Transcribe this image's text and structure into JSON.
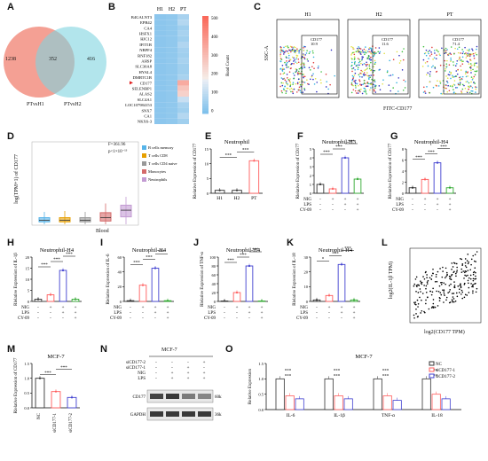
{
  "panel_letters": [
    "A",
    "B",
    "C",
    "D",
    "E",
    "F",
    "G",
    "H",
    "I",
    "J",
    "K",
    "L",
    "M",
    "N",
    "O"
  ],
  "venn": {
    "left_only": "1238",
    "overlap": "352",
    "right_only": "416",
    "left_label": "PTvsH1",
    "right_label": "PTvsH2",
    "left_color": "#f08070",
    "right_color": "#7fd3e0"
  },
  "heatmap": {
    "columns": [
      "H1",
      "H2",
      "PT"
    ],
    "genes": [
      "B4GALNT3",
      "EPB42",
      "CA4",
      "HSFX1",
      "HJC12",
      "IFIT1B",
      "NBPF4",
      "RNF182",
      "AHSP",
      "SLC30A8",
      "HYAL4",
      "DMRTC1B",
      "CD177",
      "SELENBP1",
      "ALAS2",
      "SLC4A1",
      "LOC107984153",
      "SNX7",
      "CA1",
      "NKX6-3"
    ],
    "pt_levels": [
      0.12,
      0.15,
      0.1,
      0.12,
      0.1,
      0.14,
      0.11,
      0.1,
      0.12,
      0.1,
      0.1,
      0.12,
      0.55,
      0.45,
      0.4,
      0.2,
      0.12,
      0.1,
      0.15,
      0.1
    ],
    "scale_ticks": [
      "500",
      "400",
      "300",
      "200",
      "100",
      "0"
    ],
    "scale_label": "Read Count",
    "marked_gene": "CD177"
  },
  "flow": {
    "y_label": "SSC-A",
    "x_label": "FITC-CD177",
    "plots": [
      {
        "title": "H1",
        "gate_label": "CD177",
        "gate_value": "10.9"
      },
      {
        "title": "H2",
        "gate_label": "CD177",
        "gate_value": "11.6"
      },
      {
        "title": "PT",
        "gate_label": "CD177",
        "gate_value": "71.4"
      }
    ]
  },
  "boxplot": {
    "ylabel": "log(TPM+1) of CD177",
    "xlabel": "Blood",
    "stat": "F=361.96",
    "pval": "p<1×10⁻¹³",
    "legend": [
      "B cells memory",
      "T cells CD8",
      "T cells CD4 naive",
      "Monocytes",
      "Neutrophils"
    ],
    "colors": [
      "#56b4e9",
      "#e69f00",
      "#999999",
      "#d46a6a",
      "#c39bd3"
    ],
    "ylim": [
      0,
      10
    ],
    "boxes": [
      {
        "q1": 0.4,
        "med": 0.6,
        "q3": 0.9,
        "lo": 0.1,
        "hi": 1.6
      },
      {
        "q1": 0.4,
        "med": 0.6,
        "q3": 0.9,
        "lo": 0.1,
        "hi": 1.7
      },
      {
        "q1": 0.4,
        "med": 0.6,
        "q3": 0.9,
        "lo": 0.1,
        "hi": 1.6
      },
      {
        "q1": 0.5,
        "med": 0.9,
        "q3": 1.5,
        "lo": 0.1,
        "hi": 2.6
      },
      {
        "q1": 1.0,
        "med": 1.8,
        "q3": 2.4,
        "lo": 0.1,
        "hi": 3.4
      }
    ]
  },
  "chart_data": [
    {
      "id": "E",
      "type": "bar",
      "title": "Neutrophil",
      "ylabel": "Rlelative Expression of CD177",
      "categories": [
        "H1",
        "H2",
        "PT"
      ],
      "values": [
        1,
        1,
        11
      ],
      "ylim": [
        0,
        15
      ],
      "yticks": [
        "0",
        "5",
        "10",
        "15"
      ],
      "colors": [
        "#333",
        "#333",
        "#ff5d5d"
      ],
      "sig": [
        "***",
        "***"
      ]
    },
    {
      "id": "F",
      "type": "bar",
      "title": "Neutrophil-H3",
      "ylabel": "Rlelative Expression of CD177",
      "values": [
        1,
        0.5,
        4,
        1.6
      ],
      "ylim": [
        0,
        5
      ],
      "yticks": [
        "0",
        "1",
        "2",
        "3",
        "4",
        "5"
      ],
      "colors": [
        "#333",
        "#ff5d5d",
        "#4040d0",
        "#33aa33"
      ],
      "sig": [
        "***",
        "***",
        "***"
      ],
      "conditions": [
        {
          "name": "NIG",
          "signs": [
            "-",
            "+",
            "+",
            "+"
          ]
        },
        {
          "name": "LPS",
          "signs": [
            "-",
            "-",
            "+",
            "+"
          ]
        },
        {
          "name": "CY-09",
          "signs": [
            "-",
            "-",
            "-",
            "+"
          ]
        }
      ]
    },
    {
      "id": "G",
      "type": "bar",
      "title": "Neutrophil-H4",
      "ylabel": "Rlelative Expression of CD177",
      "values": [
        1,
        2.5,
        5.5,
        1
      ],
      "ylim": [
        0,
        8
      ],
      "yticks": [
        "0",
        "2",
        "4",
        "6",
        "8"
      ],
      "colors": [
        "#333",
        "#ff5d5d",
        "#4040d0",
        "#33aa33"
      ],
      "sig": [
        "***",
        "***",
        "***"
      ],
      "conditions": [
        {
          "name": "NIG",
          "signs": [
            "-",
            "+",
            "+",
            "+"
          ]
        },
        {
          "name": "LPS",
          "signs": [
            "-",
            "-",
            "+",
            "+"
          ]
        },
        {
          "name": "CY-09",
          "signs": [
            "-",
            "-",
            "-",
            "+"
          ]
        }
      ]
    },
    {
      "id": "H",
      "type": "bar",
      "title": "Neutrophil-H4",
      "ylabel": "Rlelative Expression of IL-1β",
      "values": [
        1,
        3,
        14,
        1
      ],
      "ylim": [
        0,
        20
      ],
      "yticks": [
        "0",
        "5",
        "10",
        "15",
        "20"
      ],
      "colors": [
        "#333",
        "#ff5d5d",
        "#4040d0",
        "#33aa33"
      ],
      "sig": [
        "***",
        "***",
        "***"
      ],
      "conditions": [
        {
          "name": "NIG",
          "signs": [
            "-",
            "+",
            "+",
            "+"
          ]
        },
        {
          "name": "LPS",
          "signs": [
            "-",
            "-",
            "+",
            "+"
          ]
        },
        {
          "name": "CY-09",
          "signs": [
            "-",
            "-",
            "-",
            "+"
          ]
        }
      ]
    },
    {
      "id": "I",
      "type": "bar",
      "title": "Neutrophil-H4",
      "ylabel": "Rlelative Expression of IL-6",
      "values": [
        1,
        22,
        45,
        1
      ],
      "ylim": [
        0,
        60
      ],
      "yticks": [
        "0",
        "20",
        "40",
        "60"
      ],
      "colors": [
        "#333",
        "#ff5d5d",
        "#4040d0",
        "#33aa33"
      ],
      "sig": [
        "***",
        "***",
        "***"
      ],
      "conditions": [
        {
          "name": "NIG",
          "signs": [
            "-",
            "+",
            "+",
            "+"
          ]
        },
        {
          "name": "LPS",
          "signs": [
            "-",
            "-",
            "+",
            "+"
          ]
        },
        {
          "name": "CY-09",
          "signs": [
            "-",
            "-",
            "-",
            "+"
          ]
        }
      ]
    },
    {
      "id": "J",
      "type": "bar",
      "title": "Neutrophil-H4",
      "ylabel": "Rlelative Expression of TNF-α",
      "values": [
        1,
        20,
        80,
        1
      ],
      "ylim": [
        0,
        100
      ],
      "yticks": [
        "0",
        "20",
        "40",
        "60",
        "80",
        "100"
      ],
      "colors": [
        "#333",
        "#ff5d5d",
        "#4040d0",
        "#33aa33"
      ],
      "sig": [
        "***",
        "***",
        "***"
      ],
      "conditions": [
        {
          "name": "NIG",
          "signs": [
            "-",
            "+",
            "+",
            "+"
          ]
        },
        {
          "name": "LPS",
          "signs": [
            "-",
            "-",
            "+",
            "+"
          ]
        },
        {
          "name": "CY-09",
          "signs": [
            "-",
            "-",
            "-",
            "+"
          ]
        }
      ]
    },
    {
      "id": "K",
      "type": "bar",
      "title": "Neutrophil-H4",
      "ylabel": "Rlelative Expression of IL-18",
      "values": [
        1,
        4,
        25,
        1
      ],
      "ylim": [
        0,
        30
      ],
      "yticks": [
        "0",
        "10",
        "20",
        "30"
      ],
      "colors": [
        "#333",
        "#ff5d5d",
        "#4040d0",
        "#33aa33"
      ],
      "sig": [
        "*",
        "***",
        "***"
      ],
      "conditions": [
        {
          "name": "NIG",
          "signs": [
            "-",
            "+",
            "+",
            "+"
          ]
        },
        {
          "name": "LPS",
          "signs": [
            "-",
            "-",
            "+",
            "+"
          ]
        },
        {
          "name": "CY-09",
          "signs": [
            "-",
            "-",
            "-",
            "+"
          ]
        }
      ]
    },
    {
      "id": "M",
      "type": "bar",
      "title": "MCF-7",
      "ylabel": "Rlelative Expression of CD177",
      "categories": [
        "NC",
        "siCD177-1",
        "siCD177-2"
      ],
      "values": [
        1,
        0.55,
        0.35
      ],
      "ylim": [
        0,
        1.5
      ],
      "yticks": [
        "0.0",
        "0.5",
        "1.0",
        "1.5"
      ],
      "colors": [
        "#333",
        "#ff5d5d",
        "#4040d0"
      ],
      "sig": [
        "***",
        "***"
      ]
    },
    {
      "id": "O",
      "type": "bar",
      "title": "MCF-7",
      "ylabel": "Relative Expression",
      "categories": [
        "IL-6",
        "IL-1β",
        "TNF-α",
        "IL-18"
      ],
      "series": [
        {
          "name": "NC",
          "values": [
            1,
            1,
            1,
            1
          ]
        },
        {
          "name": "siCD177-1",
          "values": [
            0.45,
            0.45,
            0.45,
            0.5
          ]
        },
        {
          "name": "siCD177-2",
          "values": [
            0.35,
            0.35,
            0.3,
            0.35
          ]
        }
      ],
      "ylim": [
        0,
        1.5
      ],
      "yticks": [
        "0.0",
        "0.5",
        "1.0",
        "1.5"
      ],
      "colors": [
        "#333",
        "#ff5d5d",
        "#4040d0"
      ]
    }
  ],
  "scatter": {
    "ylabel": "log2(IL-1β TPM)",
    "xlabel": "log2(CD177 TPM)",
    "stat1": "p-value = 3.2 × 10⁻⁰⁸",
    "stat2": "R = 0.4"
  },
  "western": {
    "title": "MCF-7",
    "rows": [
      {
        "name": "siCD177-2",
        "signs": [
          "-",
          "-",
          "-",
          "+"
        ]
      },
      {
        "name": "siCD177-1",
        "signs": [
          "-",
          "-",
          "+",
          "-"
        ]
      },
      {
        "name": "NIG",
        "signs": [
          "-",
          "+",
          "+",
          "+"
        ]
      },
      {
        "name": "LPS",
        "signs": [
          "-",
          "+",
          "+",
          "+"
        ]
      }
    ],
    "bands": [
      {
        "name": "CD177",
        "kda": "60kDa",
        "intensity": [
          0.85,
          0.9,
          0.6,
          0.55
        ]
      },
      {
        "name": "GAPDH",
        "kda": "36kDa",
        "intensity": [
          0.9,
          0.9,
          0.9,
          0.9
        ]
      }
    ]
  }
}
